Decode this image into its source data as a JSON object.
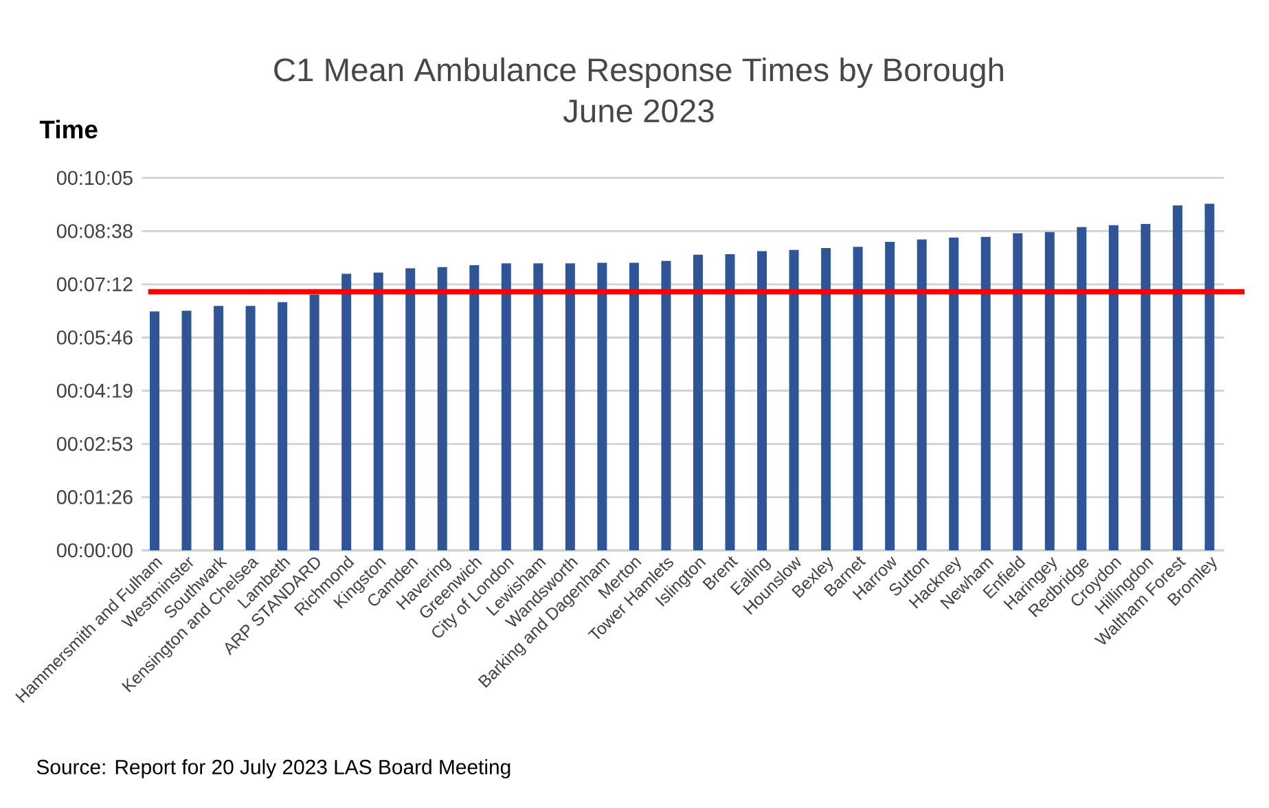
{
  "chart_data": {
    "type": "bar",
    "title": "C1 Mean Ambulance Response Times by Borough\nJune 2023",
    "ylabel": "Time",
    "categories": [
      "Hammersmith and Fulham",
      "Westminster",
      "Southwark",
      "Kensington and Chelsea",
      "Lambeth",
      "ARP STANDARD",
      "Richmond",
      "Kingston",
      "Camden",
      "Havering",
      "Greenwich",
      "City of London",
      "Lewisham",
      "Wandsworth",
      "Barking and Dagenham",
      "Merton",
      "Tower Hamlets",
      "Islington",
      "Brent",
      "Ealing",
      "Hounslow",
      "Bexley",
      "Barnet",
      "Harrow",
      "Sutton",
      "Hackney",
      "Newham",
      "Enfield",
      "Haringey",
      "Redbridge",
      "Croydon",
      "Hillingdon",
      "Waltham Forest",
      "Bromley"
    ],
    "values": [
      388,
      389,
      397,
      397,
      403,
      415,
      449,
      451,
      458,
      460,
      463,
      466,
      466,
      466,
      467,
      467,
      470,
      480,
      481,
      486,
      488,
      491,
      493,
      501,
      505,
      508,
      509,
      515,
      517,
      525,
      528,
      530,
      560,
      563
    ],
    "color": "#2f5597",
    "ylim": [
      0,
      604.8
    ],
    "yticks": [
      {
        "value": 0,
        "label": "00:00:00"
      },
      {
        "value": 86.4,
        "label": "00:01:26"
      },
      {
        "value": 172.8,
        "label": "00:02:53"
      },
      {
        "value": 259.2,
        "label": "00:04:19"
      },
      {
        "value": 345.6,
        "label": "00:05:46"
      },
      {
        "value": 432,
        "label": "00:07:12"
      },
      {
        "value": 518.4,
        "label": "00:08:38"
      },
      {
        "value": 604.8,
        "label": "00:10:05"
      }
    ],
    "grid": "y",
    "ref_lines": [
      {
        "axis": "y",
        "value": 420,
        "color": "#ff0000"
      }
    ],
    "annotations": [
      "Source: Report for 20 July 2023 LAS Board Meeting"
    ]
  }
}
